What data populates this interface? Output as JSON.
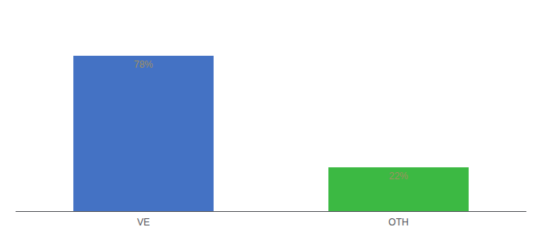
{
  "chart_data": {
    "type": "bar",
    "categories": [
      "VE",
      "OTH"
    ],
    "values": [
      78,
      22
    ],
    "value_labels": [
      "78%",
      "22%"
    ],
    "data_labels": true,
    "colors": [
      "#4472C4",
      "#3CB943"
    ],
    "ylim": [
      0,
      100
    ],
    "grid": false,
    "tick_labels": "x"
  }
}
